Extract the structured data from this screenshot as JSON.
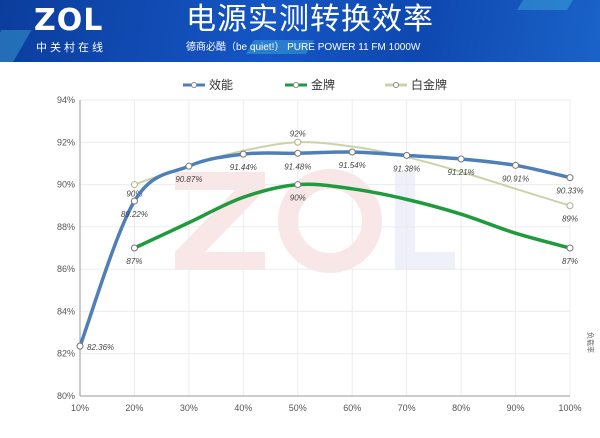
{
  "header": {
    "logo": "ZOL",
    "logo_sub": "中关村在线",
    "title": "电源实测转换效率",
    "subtitle": "德商必酷（be quiet!） PURE POWER 11 FM 1000W"
  },
  "colors": {
    "header_bg": "#1152bd"
  },
  "chart_data": {
    "type": "line",
    "title": "电源实测转换效率",
    "xlabel": "负载率",
    "ylabel": "",
    "categories": [
      "10%",
      "20%",
      "30%",
      "40%",
      "50%",
      "60%",
      "70%",
      "80%",
      "90%",
      "100%"
    ],
    "ylim": [
      80,
      94
    ],
    "yticks": [
      "80%",
      "82%",
      "84%",
      "86%",
      "88%",
      "90%",
      "92%",
      "94%"
    ],
    "grid": true,
    "legend": "top-center",
    "series": [
      {
        "name": "效能",
        "color": "#4f7fb8",
        "values": [
          82.36,
          89.22,
          90.87,
          91.44,
          91.48,
          91.54,
          91.38,
          91.21,
          90.91,
          90.33
        ],
        "labels": [
          "82.36%",
          "89.22%",
          "90.87%",
          "91.44%",
          "91.48%",
          "91.54%",
          "91.38%",
          "91.21%",
          "90.91%",
          "90.33%"
        ]
      },
      {
        "name": "金牌",
        "color": "#1f9a3c",
        "values": [
          null,
          87,
          88.2,
          89.4,
          90,
          89.8,
          89.3,
          88.6,
          87.7,
          87
        ],
        "labels": [
          null,
          "87%",
          null,
          null,
          "90%",
          null,
          null,
          null,
          null,
          "87%"
        ]
      },
      {
        "name": "白金牌",
        "color": "#c8d4a8",
        "values": [
          null,
          90,
          90.9,
          91.6,
          92,
          91.8,
          91.3,
          90.6,
          89.8,
          89
        ],
        "labels": [
          null,
          "90%",
          null,
          null,
          "92%",
          null,
          null,
          null,
          null,
          "89%"
        ]
      }
    ]
  }
}
